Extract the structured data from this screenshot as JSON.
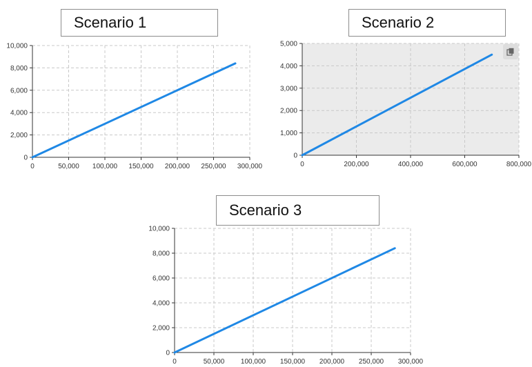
{
  "chart_data": [
    {
      "type": "line",
      "title": "Scenario 1",
      "xlim": [
        0,
        300000
      ],
      "ylim": [
        0,
        10000
      ],
      "x_ticks": [
        0,
        50000,
        100000,
        150000,
        200000,
        250000,
        300000
      ],
      "y_ticks": [
        0,
        2000,
        4000,
        6000,
        8000,
        10000
      ],
      "x_tick_labels": [
        "0",
        "50,000",
        "100,000",
        "150,000",
        "200,000",
        "250,000",
        "300,000"
      ],
      "y_tick_labels": [
        "0",
        "2,000",
        "4,000",
        "6,000",
        "8,000",
        "10,000"
      ],
      "series": [
        {
          "x": [
            0,
            280000
          ],
          "y": [
            0,
            8400
          ]
        }
      ],
      "grid": true,
      "plot_background": "#ffffff",
      "line_color": "#1f88e5"
    },
    {
      "type": "line",
      "title": "Scenario 2",
      "xlim": [
        0,
        800000
      ],
      "ylim": [
        0,
        5000
      ],
      "x_ticks": [
        0,
        200000,
        400000,
        600000,
        800000
      ],
      "y_ticks": [
        0,
        1000,
        2000,
        3000,
        4000,
        5000
      ],
      "x_tick_labels": [
        "0",
        "200,000",
        "400,000",
        "600,000",
        "800,000"
      ],
      "y_tick_labels": [
        "0",
        "1,000",
        "2,000",
        "3,000",
        "4,000",
        "5,000"
      ],
      "series": [
        {
          "x": [
            0,
            700000
          ],
          "y": [
            0,
            4500
          ]
        }
      ],
      "grid": true,
      "plot_background": "#ebebeb",
      "line_color": "#1f88e5",
      "toolbar_icon": "copy-icon"
    },
    {
      "type": "line",
      "title": "Scenario 3",
      "xlim": [
        0,
        300000
      ],
      "ylim": [
        0,
        10000
      ],
      "x_ticks": [
        0,
        50000,
        100000,
        150000,
        200000,
        250000,
        300000
      ],
      "y_ticks": [
        0,
        2000,
        4000,
        6000,
        8000,
        10000
      ],
      "x_tick_labels": [
        "0",
        "50,000",
        "100,000",
        "150,000",
        "200,000",
        "250,000",
        "300,000"
      ],
      "y_tick_labels": [
        "0",
        "2,000",
        "4,000",
        "6,000",
        "8,000",
        "10,000"
      ],
      "series": [
        {
          "x": [
            0,
            280000
          ],
          "y": [
            0,
            8400
          ]
        }
      ],
      "grid": true,
      "plot_background": "#ffffff",
      "line_color": "#1f88e5"
    }
  ]
}
